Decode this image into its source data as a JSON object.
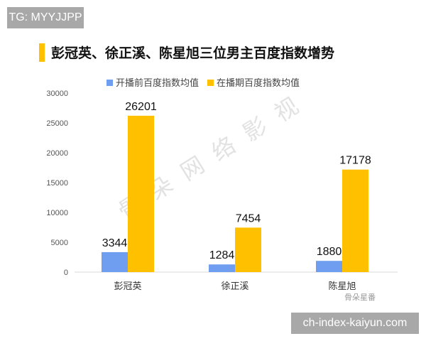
{
  "watermark_tg": "TG: MYYJJPP",
  "watermark_site": "ch-index-kaiyun.com",
  "watermark_diagonal": "骨朵网络影视",
  "brand": "骨朵星番",
  "colors": {
    "before": "#6f9ef0",
    "during": "#ffc000",
    "accent": "#ffc000"
  },
  "chart_data": {
    "type": "bar",
    "title": "彭冠英、徐正溪、陈星旭三位男主百度指数增势",
    "categories": [
      "彭冠英",
      "徐正溪",
      "陈星旭"
    ],
    "series": [
      {
        "name": "开播前百度指数均值",
        "values": [
          3344,
          1284,
          1880
        ]
      },
      {
        "name": "在播期百度指数均值",
        "values": [
          26201,
          7454,
          17178
        ]
      }
    ],
    "ylim": [
      0,
      30000
    ],
    "yticks": [
      0,
      5000,
      10000,
      15000,
      20000,
      25000,
      30000
    ],
    "grid": false,
    "legend": "top"
  }
}
